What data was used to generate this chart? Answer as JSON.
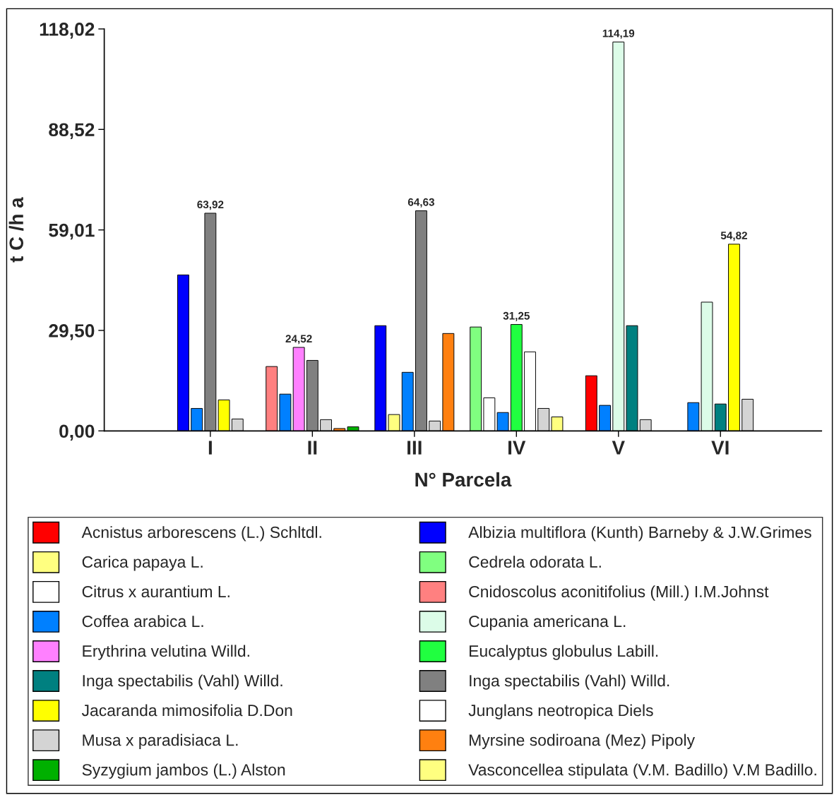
{
  "chart_data": {
    "type": "bar",
    "xlabel": "N° Parcela",
    "ylabel": "t C /h a",
    "categories": [
      "I",
      "II",
      "III",
      "IV",
      "V",
      "VI"
    ],
    "ylim": [
      0,
      118.02
    ],
    "yticks": [
      {
        "value": 0,
        "label": "0,00"
      },
      {
        "value": 29.5,
        "label": "29,50"
      },
      {
        "value": 59.01,
        "label": "59,01"
      },
      {
        "value": 88.52,
        "label": "88,52"
      },
      {
        "value": 118.02,
        "label": "118,02"
      }
    ],
    "grid": false,
    "legend": "bottom",
    "series": [
      {
        "name": "Acnistus arborescens (L.) Schltdl.",
        "color": "#ff0000",
        "values": [
          null,
          null,
          null,
          null,
          16.2,
          null
        ]
      },
      {
        "name": "Albizia multiflora (Kunth) Barneby & J.W.Grimes",
        "color": "#0000ff",
        "values": [
          45.8,
          null,
          30.9,
          null,
          null,
          null
        ]
      },
      {
        "name": "Carica papaya L.",
        "color": "#ffff80",
        "values": [
          null,
          null,
          4.8,
          null,
          null,
          null
        ]
      },
      {
        "name": "Cedrela odorata L.",
        "color": "#80ff80",
        "values": [
          null,
          null,
          null,
          30.5,
          null,
          null
        ]
      },
      {
        "name": "Citrus x aurantium L.",
        "color": "#ffffff",
        "values": [
          null,
          null,
          null,
          9.7,
          null,
          null
        ]
      },
      {
        "name": "Cnidoscolus aconitifolius (Mill.) I.M.Johnst",
        "color": "#ff8080",
        "values": [
          null,
          18.9,
          null,
          null,
          null,
          null
        ]
      },
      {
        "name": "Coffea arabica L.",
        "color": "#0080ff",
        "values": [
          6.6,
          10.8,
          17.2,
          5.4,
          7.5,
          8.3
        ]
      },
      {
        "name": "Cupania americana L.",
        "color": "#dcfce8",
        "values": [
          null,
          null,
          null,
          null,
          114.19,
          37.8
        ],
        "value_labels": [
          null,
          null,
          null,
          null,
          "114,19",
          null
        ]
      },
      {
        "name": "Erythrina velutina Willd.",
        "color": "#ff80ff",
        "values": [
          null,
          24.52,
          null,
          null,
          null,
          null
        ],
        "value_labels": [
          null,
          "24,52",
          null,
          null,
          null,
          null
        ]
      },
      {
        "name": "Eucalyptus globulus Labill.",
        "color": "#20ff40",
        "values": [
          null,
          null,
          null,
          31.25,
          null,
          null
        ],
        "value_labels": [
          null,
          null,
          null,
          "31,25",
          null,
          null
        ]
      },
      {
        "name": "Inga spectabilis (Vahl) Willd.",
        "color": "#008080",
        "values": [
          null,
          null,
          null,
          null,
          30.9,
          7.9
        ]
      },
      {
        "name": "Inga spectabilis (Vahl) Willd.",
        "color": "#808080",
        "values": [
          63.92,
          20.7,
          64.63,
          null,
          null,
          null
        ],
        "value_labels": [
          "63,92",
          null,
          "64,63",
          null,
          null,
          null
        ]
      },
      {
        "name": "Jacaranda mimosifolia D.Don",
        "color": "#ffff00",
        "values": [
          9.1,
          null,
          null,
          null,
          null,
          54.82
        ],
        "value_labels": [
          null,
          null,
          null,
          null,
          null,
          "54,82"
        ]
      },
      {
        "name": "Junglans neotropica Diels",
        "color": "#ffffff",
        "values": [
          null,
          null,
          null,
          23.2,
          null,
          null
        ]
      },
      {
        "name": "Musa x paradisiaca L.",
        "color": "#d4d4d4",
        "values": [
          3.5,
          3.3,
          2.9,
          6.6,
          3.3,
          9.3
        ]
      },
      {
        "name": "Myrsine sodiroana (Mez) Pipoly",
        "color": "#ff8010",
        "values": [
          null,
          0.7,
          28.6,
          null,
          null,
          null
        ]
      },
      {
        "name": "Syzygium jambos (L.) Alston",
        "color": "#00b000",
        "values": [
          null,
          1.2,
          null,
          null,
          null,
          null
        ]
      },
      {
        "name": "Vasconcellea stipulata (V.M. Badillo) V.M Badillo.",
        "color": "#ffff80",
        "values": [
          null,
          null,
          null,
          4.1,
          null,
          null
        ]
      }
    ]
  }
}
